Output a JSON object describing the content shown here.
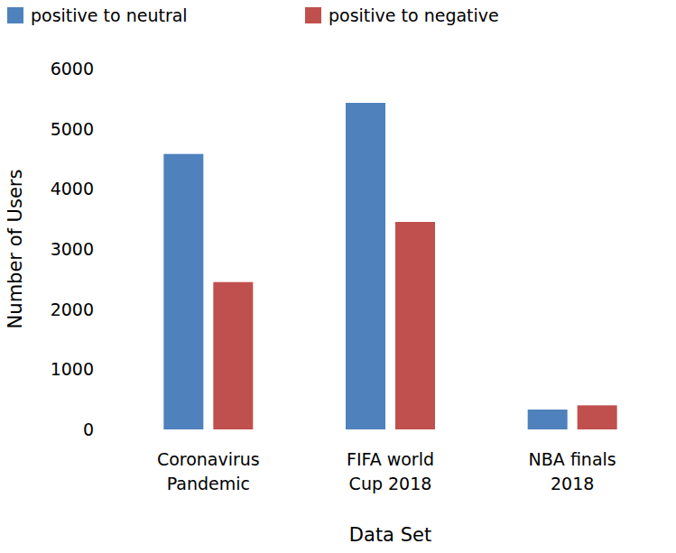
{
  "chart_data": {
    "type": "bar",
    "x_label": "Data Set",
    "y_label": "Number of Users",
    "categories": [
      "Coronavirus Pandemic",
      "FIFA world Cup 2018",
      "NBA finals 2018"
    ],
    "series": [
      {
        "name": "positive to neutral",
        "color": "#4f81bd",
        "values": [
          4580,
          5430,
          330
        ]
      },
      {
        "name": "positive to negative",
        "color": "#c0504d",
        "values": [
          2450,
          3450,
          400
        ]
      }
    ],
    "ylim": [
      0,
      6000
    ],
    "yticks": [
      0,
      1000,
      2000,
      3000,
      4000,
      5000,
      6000
    ],
    "grid": false,
    "legend": "top"
  }
}
